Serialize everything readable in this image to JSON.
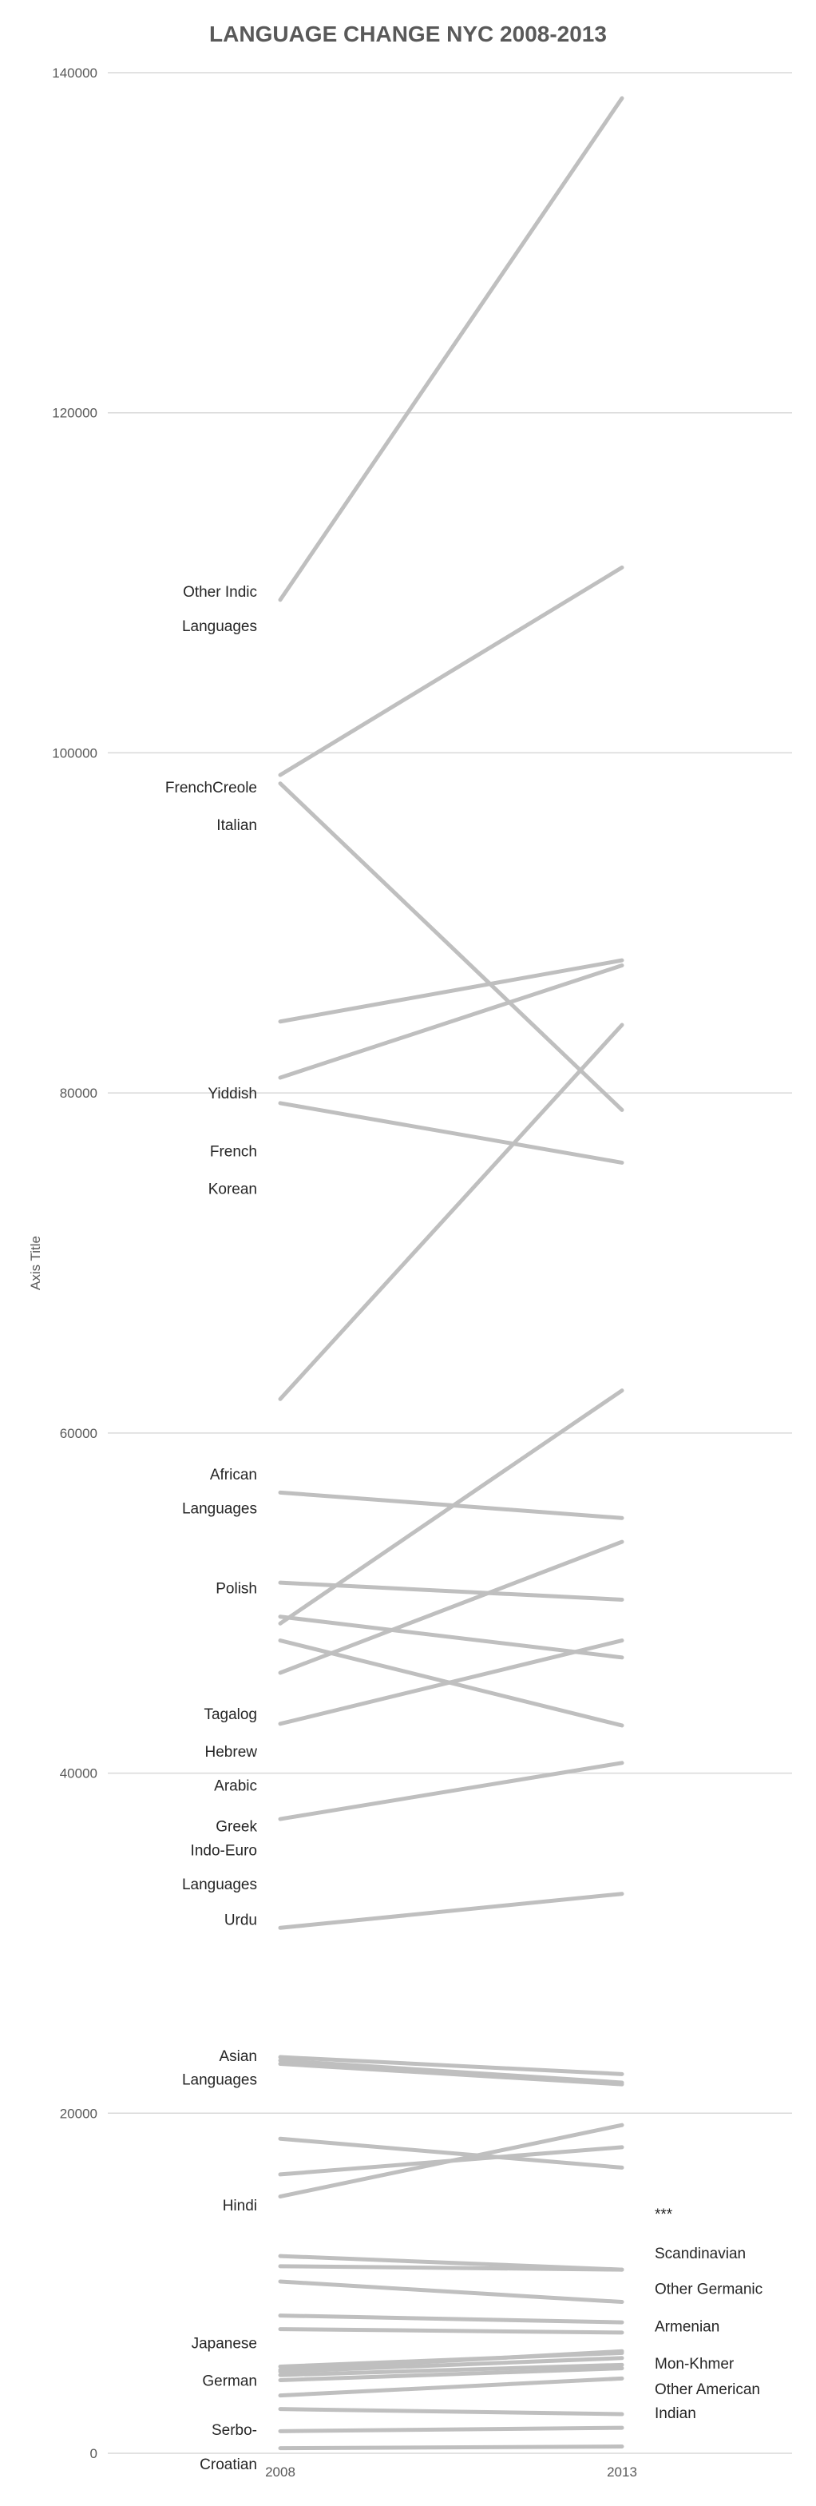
{
  "chart_data": {
    "type": "line",
    "title": "LANGUAGE CHANGE NYC 2008-2013",
    "xlabel": "",
    "ylabel": "Axis Title",
    "categories": [
      "2008",
      "2013"
    ],
    "ylim": [
      0,
      140000
    ],
    "yticks": [
      0,
      20000,
      40000,
      60000,
      80000,
      100000,
      120000,
      140000
    ],
    "grid": true,
    "colors": {
      "line": "#bfbfbf",
      "grid": "#d9d9d9",
      "text": "#595959"
    },
    "series": [
      {
        "values": [
          109000,
          138500
        ]
      },
      {
        "values": [
          98700,
          110900
        ]
      },
      {
        "values": [
          98200,
          79000
        ]
      },
      {
        "values": [
          84200,
          87800
        ]
      },
      {
        "values": [
          80900,
          87500
        ]
      },
      {
        "values": [
          79400,
          75900
        ]
      },
      {
        "values": [
          62000,
          84000
        ]
      },
      {
        "values": [
          56500,
          55000
        ]
      },
      {
        "values": [
          51200,
          50200
        ]
      },
      {
        "values": [
          49200,
          46800
        ]
      },
      {
        "values": [
          48800,
          62500
        ]
      },
      {
        "values": [
          47800,
          42800
        ]
      },
      {
        "values": [
          45900,
          53600
        ]
      },
      {
        "values": [
          42900,
          47800
        ]
      },
      {
        "values": [
          37300,
          40600
        ]
      },
      {
        "values": [
          30900,
          32900
        ]
      },
      {
        "values": [
          23300,
          22300
        ]
      },
      {
        "values": [
          23100,
          21800
        ]
      },
      {
        "values": [
          22900,
          21700
        ]
      },
      {
        "values": [
          18500,
          16800
        ]
      },
      {
        "values": [
          16400,
          18000
        ]
      },
      {
        "values": [
          15100,
          19300
        ]
      },
      {
        "values": [
          11600,
          10800
        ]
      },
      {
        "values": [
          11000,
          10800
        ]
      },
      {
        "values": [
          10100,
          8900
        ]
      },
      {
        "values": [
          8100,
          7700
        ]
      },
      {
        "values": [
          7300,
          7100
        ]
      },
      {
        "values": [
          5100,
          5900
        ]
      },
      {
        "values": [
          4900,
          6000
        ]
      },
      {
        "values": [
          4800,
          5600
        ]
      },
      {
        "values": [
          4600,
          5200
        ]
      },
      {
        "values": [
          4300,
          5000
        ]
      },
      {
        "values": [
          3400,
          4400
        ]
      },
      {
        "values": [
          2600,
          2300
        ]
      },
      {
        "values": [
          1300,
          1500
        ]
      },
      {
        "values": [
          300,
          400
        ]
      }
    ],
    "left_labels": [
      {
        "text": "Other Indic",
        "y": 109500
      },
      {
        "text": "Languages",
        "y": 107500
      },
      {
        "text": "FrenchCreole",
        "y": 98000
      },
      {
        "text": "Italian",
        "y": 95800
      },
      {
        "text": "Yiddish",
        "y": 80000
      },
      {
        "text": "French",
        "y": 76600
      },
      {
        "text": "Korean",
        "y": 74400
      },
      {
        "text": "African",
        "y": 57600
      },
      {
        "text": "Languages",
        "y": 55600
      },
      {
        "text": "Polish",
        "y": 50900
      },
      {
        "text": "Tagalog",
        "y": 43500
      },
      {
        "text": "Hebrew",
        "y": 41300
      },
      {
        "text": "Arabic",
        "y": 39300
      },
      {
        "text": "Greek",
        "y": 36900
      },
      {
        "text": "Indo-Euro",
        "y": 35500
      },
      {
        "text": "Languages",
        "y": 33500
      },
      {
        "text": "Urdu",
        "y": 31400
      },
      {
        "text": "Asian",
        "y": 23400
      },
      {
        "text": "Languages",
        "y": 22000
      },
      {
        "text": "Hindi",
        "y": 14600
      },
      {
        "text": "Japanese",
        "y": 6500
      },
      {
        "text": "German",
        "y": 4300
      },
      {
        "text": "Serbo-",
        "y": 1400
      },
      {
        "text": "Croatian",
        "y": -600
      }
    ],
    "right_labels": [
      {
        "text": "***",
        "y": 14100
      },
      {
        "text": "Scandinavian",
        "y": 11800
      },
      {
        "text": "Other Germanic",
        "y": 9700
      },
      {
        "text": "Armenian",
        "y": 7500
      },
      {
        "text": "Mon-Khmer",
        "y": 5300
      },
      {
        "text": "Other American",
        "y": 3800
      },
      {
        "text": "Indian",
        "y": 2400
      }
    ]
  }
}
